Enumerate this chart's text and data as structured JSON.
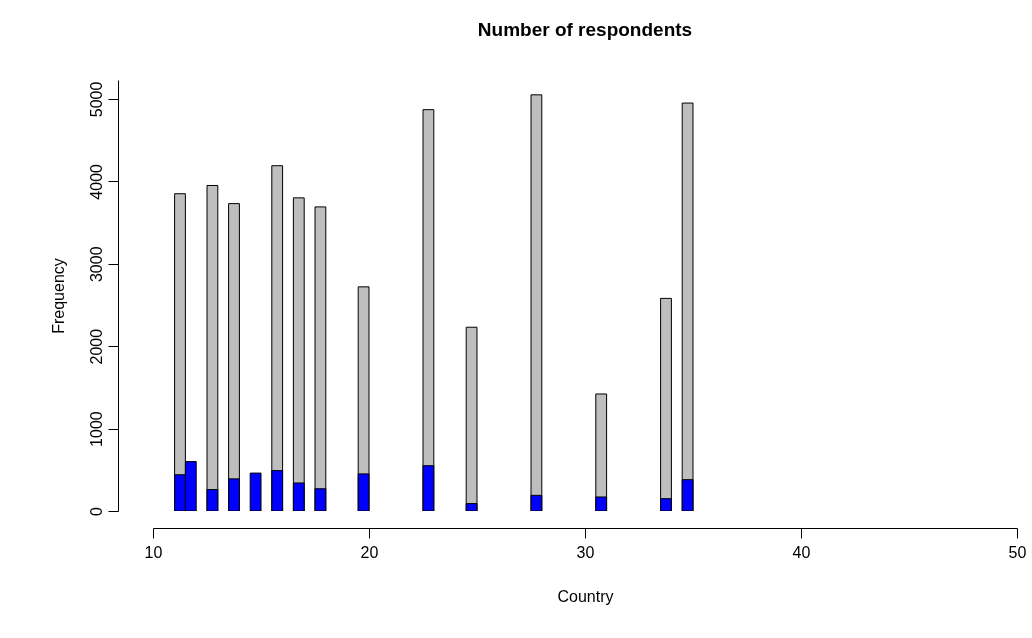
{
  "chart_data": {
    "type": "histogram",
    "title": "Number of respondents",
    "xlabel": "Country",
    "ylabel": "Frequency",
    "bins": [
      11,
      11.5,
      12,
      12.5,
      13,
      13.5,
      14,
      14.5,
      15,
      15.5,
      16,
      16.5,
      17,
      17.5,
      18,
      18.5,
      19,
      19.5,
      20,
      20.5,
      21,
      21.5,
      22,
      22.5,
      23,
      23.5,
      24,
      24.5,
      25,
      25.5,
      26,
      26.5,
      27,
      27.5,
      28,
      28.5,
      29,
      29.5,
      30,
      30.5,
      31,
      31.5,
      32,
      32.5,
      33,
      33.5,
      34,
      34.5,
      35
    ],
    "series": [
      {
        "color": "#bebebe",
        "values": [
          3850,
          null,
          0,
          3950,
          0,
          3730,
          0,
          null,
          0,
          4190,
          0,
          3800,
          0,
          3690,
          0,
          0,
          0,
          2720,
          0,
          0,
          0,
          0,
          0,
          4870,
          0,
          0,
          0,
          2230,
          0,
          0,
          0,
          0,
          0,
          5050,
          0,
          0,
          0,
          0,
          0,
          1420,
          0,
          0,
          0,
          0,
          0,
          2580,
          0,
          4950
        ]
      },
      {
        "color": "#0000ff",
        "values": [
          440,
          600,
          0,
          260,
          0,
          390,
          0,
          460,
          0,
          490,
          0,
          340,
          0,
          270,
          0,
          0,
          0,
          450,
          0,
          0,
          0,
          0,
          0,
          550,
          0,
          0,
          0,
          90,
          0,
          0,
          0,
          0,
          0,
          190,
          0,
          0,
          0,
          0,
          0,
          170,
          0,
          0,
          0,
          0,
          0,
          150,
          0,
          380
        ]
      }
    ],
    "xlim": [
      10,
      50
    ],
    "ylim": [
      0,
      5230
    ],
    "xticks": [
      10,
      20,
      30,
      40,
      50
    ],
    "yticks": [
      0,
      1000,
      2000,
      3000,
      4000,
      5000
    ]
  }
}
